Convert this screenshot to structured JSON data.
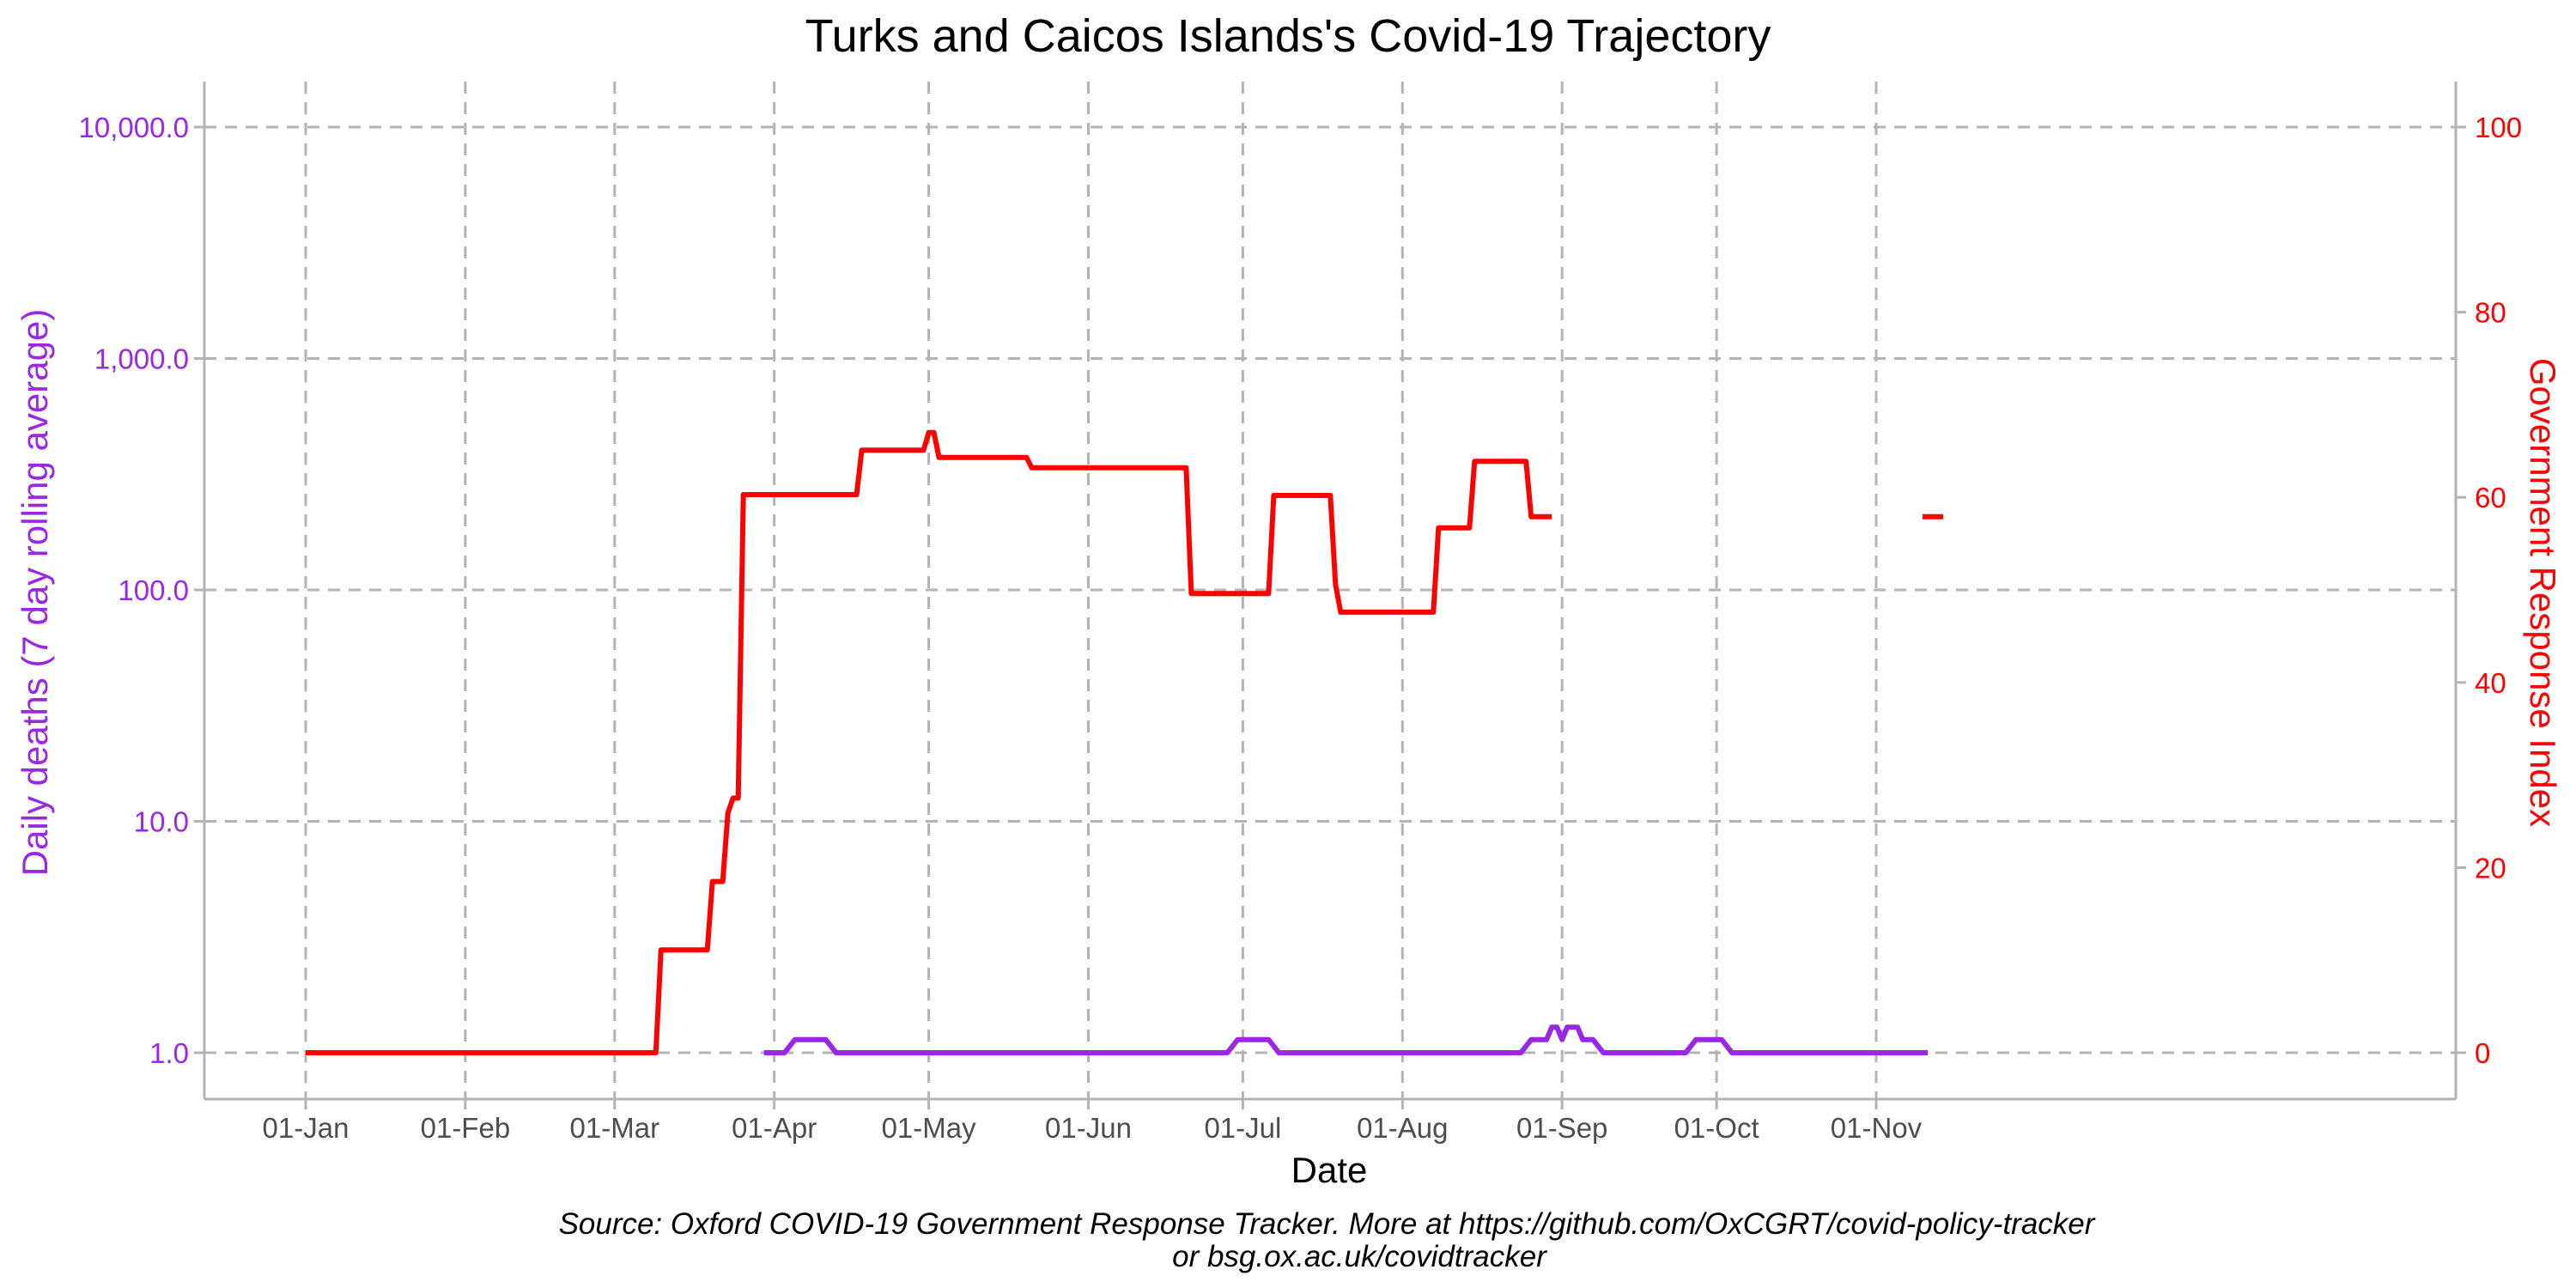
{
  "colors": {
    "deaths": "#9b27e6",
    "response": "#ff0000",
    "grid": "#b3b3b3",
    "axis": "#b3b3b3",
    "xtick": "#4d4d4d"
  },
  "chart_data": {
    "type": "line",
    "title": "Turks and Caicos Islands's Covid-19 Trajectory",
    "xlabel": "Date",
    "ylabel_left": "Daily deaths (7 day rolling average)",
    "ylabel_right": "Government Response Index",
    "left_axis_scale": "log",
    "left_ylim": [
      0.82,
      15000
    ],
    "right_ylim": [
      -5,
      105
    ],
    "x_tick_labels": [
      "01-Jan",
      "01-Feb",
      "01-Mar",
      "01-Apr",
      "01-May",
      "01-Jun",
      "01-Jul",
      "01-Aug",
      "01-Sep",
      "01-Oct",
      "01-Nov"
    ],
    "x_tick_dates": [
      "2020-01-01",
      "2020-02-01",
      "2020-03-01",
      "2020-04-01",
      "2020-05-01",
      "2020-06-01",
      "2020-07-01",
      "2020-08-01",
      "2020-09-01",
      "2020-10-01",
      "2020-11-01"
    ],
    "left_tick_values": [
      1,
      10,
      100,
      1000,
      10000
    ],
    "left_tick_labels": [
      "1.0",
      "10.0",
      "100.0",
      "1,000.0",
      "10,000.0"
    ],
    "right_tick_values": [
      0,
      20,
      40,
      60,
      80,
      100
    ],
    "right_tick_labels": [
      "0",
      "20",
      "40",
      "60",
      "80",
      "100"
    ],
    "grid": true,
    "series": [
      {
        "name": "Daily deaths (7 day rolling average)",
        "axis": "left",
        "segments": [
          [
            [
              "2020-03-30",
              1
            ],
            [
              "2020-04-03",
              1
            ],
            [
              "2020-04-05",
              1.14
            ],
            [
              "2020-04-11",
              1.14
            ],
            [
              "2020-04-13",
              1
            ],
            [
              "2020-06-28",
              1
            ],
            [
              "2020-06-30",
              1.14
            ],
            [
              "2020-07-06",
              1.14
            ],
            [
              "2020-07-08",
              1
            ],
            [
              "2020-08-24",
              1
            ],
            [
              "2020-08-26",
              1.14
            ],
            [
              "2020-08-29",
              1.14
            ],
            [
              "2020-08-30",
              1.29
            ],
            [
              "2020-08-31",
              1.29
            ],
            [
              "2020-09-01",
              1.14
            ],
            [
              "2020-09-02",
              1.29
            ],
            [
              "2020-09-04",
              1.29
            ],
            [
              "2020-09-05",
              1.14
            ],
            [
              "2020-09-07",
              1.14
            ],
            [
              "2020-09-09",
              1
            ],
            [
              "2020-09-25",
              1
            ],
            [
              "2020-09-27",
              1.14
            ],
            [
              "2020-10-02",
              1.14
            ],
            [
              "2020-10-04",
              1
            ],
            [
              "2020-11-11",
              1
            ]
          ]
        ]
      },
      {
        "name": "Government Response Index",
        "axis": "right",
        "segments": [
          [
            [
              "2020-01-01",
              0
            ],
            [
              "2020-03-09",
              0
            ],
            [
              "2020-03-10",
              11.1
            ],
            [
              "2020-03-19",
              11.1
            ],
            [
              "2020-03-20",
              18.5
            ],
            [
              "2020-03-22",
              18.5
            ],
            [
              "2020-03-23",
              25.9
            ],
            [
              "2020-03-24",
              27.5
            ],
            [
              "2020-03-25",
              27.5
            ],
            [
              "2020-03-26",
              60.3
            ],
            [
              "2020-04-17",
              60.3
            ],
            [
              "2020-04-18",
              65.1
            ],
            [
              "2020-04-30",
              65.1
            ],
            [
              "2020-05-01",
              67.0
            ],
            [
              "2020-05-02",
              67.0
            ],
            [
              "2020-05-03",
              64.3
            ],
            [
              "2020-05-20",
              64.3
            ],
            [
              "2020-05-21",
              63.2
            ],
            [
              "2020-06-20",
              63.2
            ],
            [
              "2020-06-21",
              49.6
            ],
            [
              "2020-07-06",
              49.6
            ],
            [
              "2020-07-07",
              60.2
            ],
            [
              "2020-07-18",
              60.2
            ],
            [
              "2020-07-19",
              50.6
            ],
            [
              "2020-07-20",
              47.6
            ],
            [
              "2020-08-07",
              47.6
            ],
            [
              "2020-08-08",
              56.7
            ],
            [
              "2020-08-14",
              56.7
            ],
            [
              "2020-08-15",
              63.9
            ],
            [
              "2020-08-25",
              63.9
            ],
            [
              "2020-08-26",
              57.9
            ],
            [
              "2020-08-30",
              57.9
            ]
          ],
          [
            [
              "2020-11-10",
              57.9
            ],
            [
              "2020-11-14",
              57.9
            ]
          ]
        ]
      }
    ]
  },
  "caption": {
    "line1": "Source: Oxford COVID-19 Government Response Tracker. More at https://github.com/OxCGRT/covid-policy-tracker",
    "line2": "or bsg.ox.ac.uk/covidtracker"
  }
}
